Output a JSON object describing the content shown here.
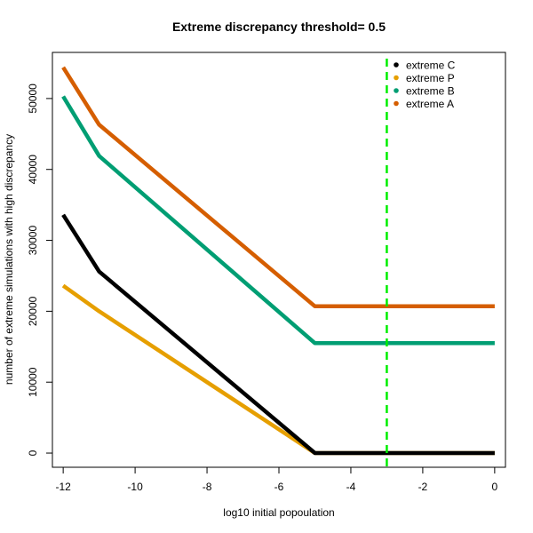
{
  "chart_data": {
    "type": "line",
    "title": "Extreme discrepancy threshold= 0.5",
    "xlabel": "log10 initial popoulation",
    "ylabel": "number of extreme simulations with high discrepancy",
    "xlim": [
      -12.3,
      0.3
    ],
    "ylim": [
      -2000,
      56500
    ],
    "x_ticks": [
      -12,
      -10,
      -8,
      -6,
      -4,
      -2,
      0
    ],
    "y_ticks": [
      0,
      10000,
      20000,
      30000,
      40000,
      50000
    ],
    "x": [
      -12,
      -11,
      -5,
      0
    ],
    "series": [
      {
        "name": "extreme C",
        "color": "#000000",
        "values": [
          33600,
          25600,
          0,
          0
        ]
      },
      {
        "name": "extreme P",
        "color": "#E69F00",
        "values": [
          23600,
          20000,
          0,
          0
        ]
      },
      {
        "name": "extreme B",
        "color": "#009E73",
        "values": [
          50300,
          41900,
          15500,
          15500
        ]
      },
      {
        "name": "extreme A",
        "color": "#D55E00",
        "values": [
          54400,
          46300,
          20700,
          20700
        ]
      }
    ],
    "vline": {
      "x": -3,
      "color": "#00EE00",
      "style": "dashed"
    },
    "legend_position": "top-right",
    "grid": false
  }
}
